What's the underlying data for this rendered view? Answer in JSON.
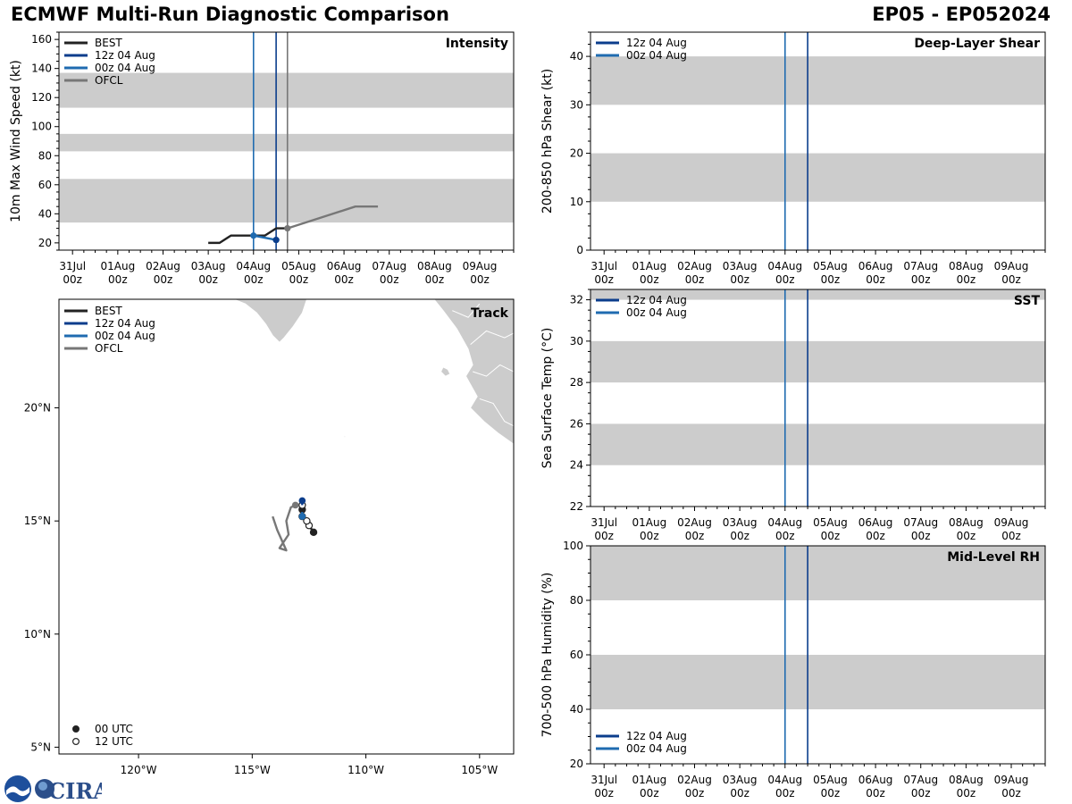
{
  "header": {
    "title": "ECMWF Multi-Run Diagnostic Comparison",
    "storm": "EP05 - EP052024"
  },
  "colors": {
    "BEST": "#222222",
    "12z 04 Aug": "#0b3d8c",
    "00z 04 Aug": "#1f6bb0",
    "OFCL": "#777777",
    "band": "#cccccc"
  },
  "logo": {
    "text": "CIRA"
  },
  "date_ticks": {
    "labels": [
      "31Jul",
      "01Aug",
      "02Aug",
      "03Aug",
      "04Aug",
      "05Aug",
      "06Aug",
      "07Aug",
      "08Aug",
      "09Aug"
    ],
    "sub": "00z"
  },
  "chart_data": [
    {
      "id": "intensity",
      "type": "line",
      "title": "Intensity",
      "ylabel": "10m Max Wind Speed (kt)",
      "xlim": [
        -0.3,
        9.75
      ],
      "ylim": [
        15,
        165
      ],
      "yticks": [
        20,
        40,
        60,
        80,
        100,
        120,
        140,
        160
      ],
      "bands": [
        [
          34,
          64
        ],
        [
          83,
          95
        ],
        [
          113,
          137
        ]
      ],
      "vlines": [
        {
          "x": 4.0,
          "series": "00z 04 Aug"
        },
        {
          "x": 4.5,
          "series": "12z 04 Aug"
        },
        {
          "x": 4.75,
          "series": "OFCL"
        }
      ],
      "legend": [
        "BEST",
        "12z 04 Aug",
        "00z 04 Aug",
        "OFCL"
      ],
      "series": [
        {
          "name": "BEST",
          "x": [
            3.0,
            3.25,
            3.5,
            3.75,
            4.0,
            4.25,
            4.5,
            4.75
          ],
          "y": [
            20,
            20,
            25,
            25,
            25,
            25,
            30,
            30
          ]
        },
        {
          "name": "00z 04 Aug",
          "x": [
            4.0,
            4.5
          ],
          "y": [
            25,
            22
          ],
          "markers": [
            4.0,
            4.5
          ]
        },
        {
          "name": "12z 04 Aug",
          "x": [
            4.5
          ],
          "y": [
            22
          ],
          "markers": [
            4.5
          ]
        },
        {
          "name": "OFCL",
          "x": [
            4.75,
            5.25,
            6.25,
            6.75
          ],
          "y": [
            30,
            35,
            45,
            45
          ],
          "markers": [
            4.75
          ]
        }
      ]
    },
    {
      "id": "shear",
      "type": "line",
      "title": "Deep-Layer Shear",
      "ylabel": "200-850 hPa Shear (kt)",
      "xlim": [
        -0.3,
        9.75
      ],
      "ylim": [
        0,
        45
      ],
      "yticks": [
        0,
        10,
        20,
        30,
        40
      ],
      "bands": [
        [
          10,
          20
        ],
        [
          30,
          40
        ]
      ],
      "vlines": [
        {
          "x": 4.0,
          "series": "00z 04 Aug"
        },
        {
          "x": 4.5,
          "series": "12z 04 Aug"
        }
      ],
      "legend": [
        "12z 04 Aug",
        "00z 04 Aug"
      ],
      "legend_pos": "top-left",
      "series": []
    },
    {
      "id": "sst",
      "type": "line",
      "title": "SST",
      "ylabel": "Sea Surface Temp (°C)",
      "xlim": [
        -0.3,
        9.75
      ],
      "ylim": [
        22,
        32.5
      ],
      "yticks": [
        22,
        24,
        26,
        28,
        30,
        32
      ],
      "bands": [
        [
          24,
          26
        ],
        [
          28,
          30
        ],
        [
          32,
          32.5
        ]
      ],
      "vlines": [
        {
          "x": 4.0,
          "series": "00z 04 Aug"
        },
        {
          "x": 4.5,
          "series": "12z 04 Aug"
        }
      ],
      "legend": [
        "12z 04 Aug",
        "00z 04 Aug"
      ],
      "legend_pos": "top-left",
      "series": []
    },
    {
      "id": "rh",
      "type": "line",
      "title": "Mid-Level RH",
      "ylabel": "700-500 hPa Humidity (%)",
      "xlim": [
        -0.3,
        9.75
      ],
      "ylim": [
        20,
        100
      ],
      "yticks": [
        20,
        40,
        60,
        80,
        100
      ],
      "bands": [
        [
          40,
          60
        ],
        [
          80,
          100
        ]
      ],
      "vlines": [
        {
          "x": 4.0,
          "series": "00z 04 Aug"
        },
        {
          "x": 4.5,
          "series": "12z 04 Aug"
        }
      ],
      "legend": [
        "12z 04 Aug",
        "00z 04 Aug"
      ],
      "legend_pos": "bottom-left",
      "series": []
    },
    {
      "id": "track",
      "type": "scatter",
      "title": "Track",
      "xlim": [
        -123.5,
        -103.5
      ],
      "ylim": [
        4.7,
        24.8
      ],
      "xticks": [
        -120,
        -115,
        -110,
        -105
      ],
      "xtick_labels": [
        "120°W",
        "115°W",
        "110°W",
        "105°W"
      ],
      "yticks": [
        5,
        10,
        15,
        20
      ],
      "ytick_labels": [
        "5°N",
        "10°N",
        "15°N",
        "20°N"
      ],
      "legend": [
        "BEST",
        "12z 04 Aug",
        "00z 04 Aug",
        "OFCL"
      ],
      "marker_legend": [
        "00 UTC",
        "12 UTC"
      ],
      "series": [
        {
          "name": "BEST",
          "lon": [
            -112.3,
            -112.5,
            -112.6,
            -112.8,
            -112.8,
            -112.8
          ],
          "lat": [
            14.5,
            14.8,
            15.0,
            15.2,
            15.5,
            15.7
          ],
          "filled": [
            true,
            false,
            false,
            true,
            true,
            false
          ]
        },
        {
          "name": "12z 04 Aug",
          "lon": [
            -112.8,
            -112.8
          ],
          "lat": [
            15.7,
            15.9
          ],
          "markers": "end"
        },
        {
          "name": "00z 04 Aug",
          "lon": [
            -112.8,
            -112.8
          ],
          "lat": [
            15.4,
            15.2
          ],
          "markers": "end"
        },
        {
          "name": "OFCL",
          "lon": [
            -113.1,
            -113.3,
            -113.5,
            -113.4,
            -113.8,
            -113.5,
            -113.9,
            -114.1
          ],
          "lat": [
            15.7,
            15.6,
            15.0,
            14.4,
            13.8,
            13.7,
            14.6,
            15.2
          ],
          "markers": "start"
        }
      ],
      "land": [
        {
          "name": "Baja California tip",
          "lonlat": [
            [
              -115.8,
              24.8
            ],
            [
              -115.3,
              24.6
            ],
            [
              -114.8,
              24.2
            ],
            [
              -114.4,
              23.7
            ],
            [
              -114.1,
              23.2
            ],
            [
              -113.8,
              22.9
            ],
            [
              -113.6,
              23.1
            ],
            [
              -113.2,
              23.6
            ],
            [
              -112.8,
              24.2
            ],
            [
              -112.6,
              24.8
            ]
          ]
        },
        {
          "name": "Mexico mainland",
          "lonlat": [
            [
              -107.0,
              24.8
            ],
            [
              -106.6,
              24.3
            ],
            [
              -106.0,
              23.5
            ],
            [
              -105.5,
              22.6
            ],
            [
              -105.3,
              21.9
            ],
            [
              -105.6,
              21.4
            ],
            [
              -105.1,
              20.5
            ],
            [
              -105.4,
              20.0
            ],
            [
              -104.8,
              19.4
            ],
            [
              -104.2,
              18.9
            ],
            [
              -103.5,
              18.4
            ],
            [
              -103.5,
              24.8
            ]
          ]
        },
        {
          "name": "Islas Marias",
          "lonlat": [
            [
              -106.6,
              21.8
            ],
            [
              -106.4,
              21.7
            ],
            [
              -106.3,
              21.5
            ],
            [
              -106.5,
              21.4
            ],
            [
              -106.7,
              21.6
            ]
          ]
        },
        {
          "name": "Islas Revillagigedo",
          "lonlat": [
            [
              -110.96,
              18.75
            ],
            [
              -110.9,
              18.75
            ],
            [
              -110.9,
              18.7
            ],
            [
              -110.96,
              18.7
            ]
          ]
        }
      ],
      "borders": [
        [
          [
            -105.4,
            22.8
          ],
          [
            -104.7,
            23.4
          ],
          [
            -103.9,
            23.1
          ],
          [
            -103.5,
            23.3
          ]
        ],
        [
          [
            -105.3,
            21.6
          ],
          [
            -104.7,
            21.4
          ],
          [
            -104.1,
            21.9
          ],
          [
            -103.5,
            21.6
          ]
        ],
        [
          [
            -105.0,
            20.4
          ],
          [
            -104.4,
            20.2
          ],
          [
            -103.9,
            19.4
          ],
          [
            -103.5,
            19.2
          ]
        ],
        [
          [
            -106.2,
            24.3
          ],
          [
            -105.5,
            24.0
          ],
          [
            -105.0,
            24.6
          ]
        ]
      ]
    }
  ]
}
